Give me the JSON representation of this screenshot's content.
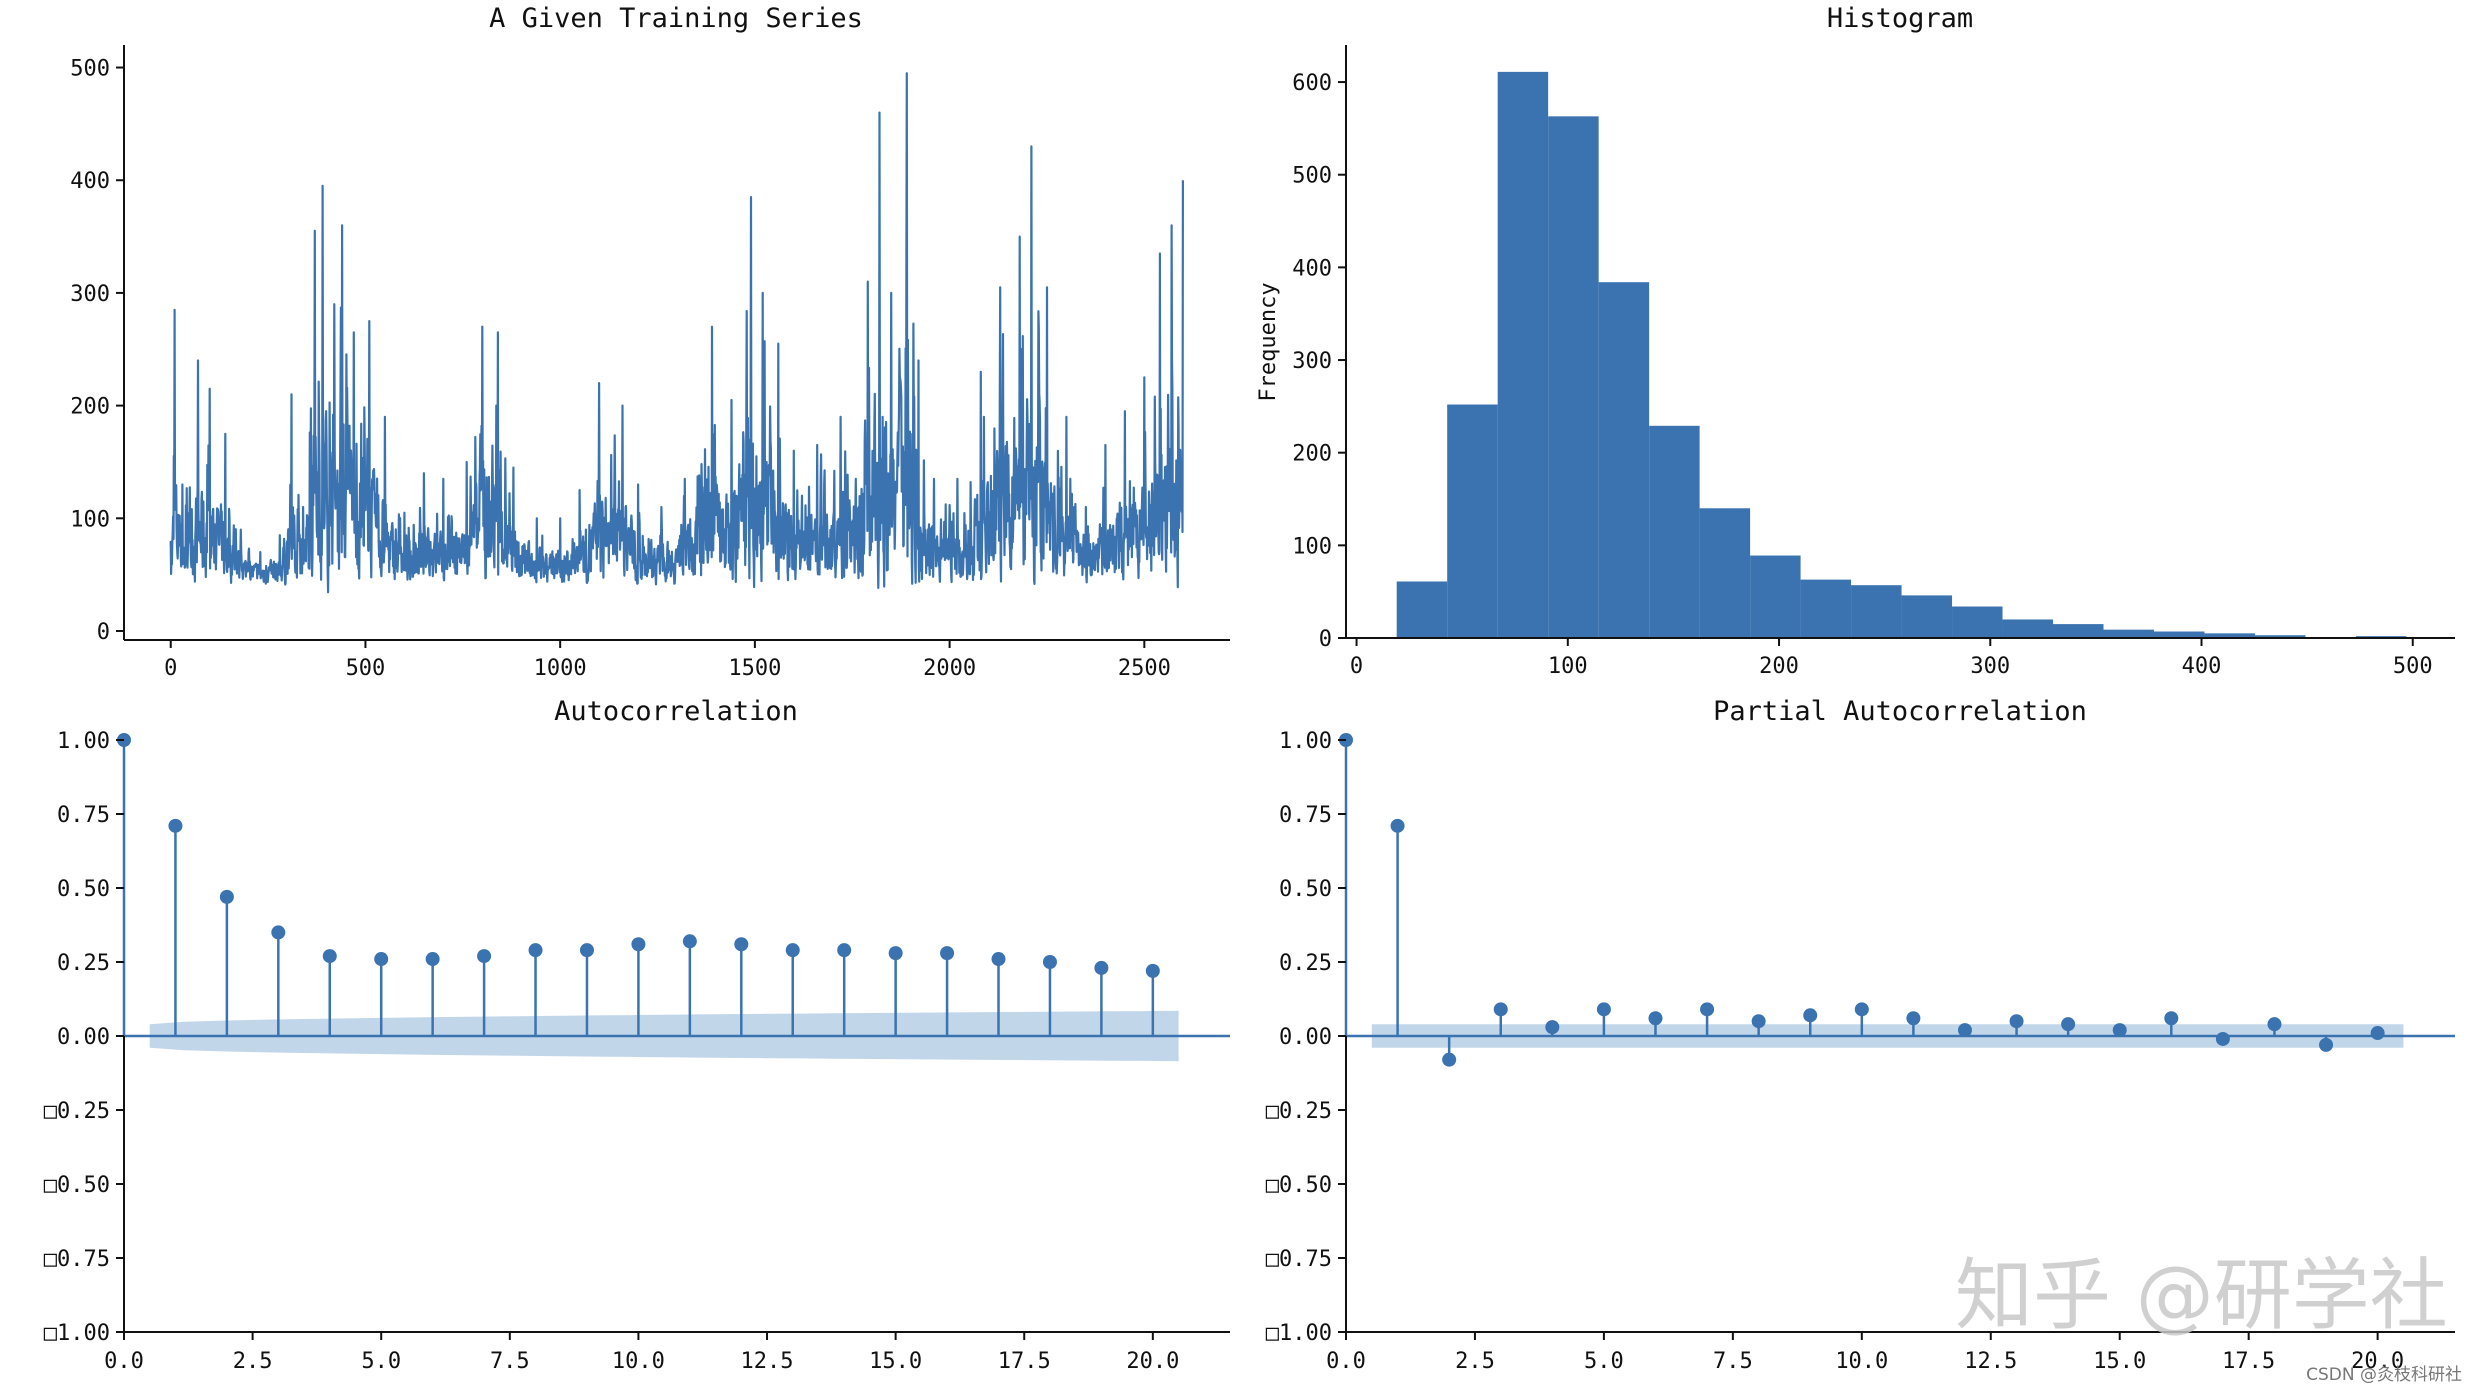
{
  "colors": {
    "series": "#3a73b0",
    "band": "#aec8e3",
    "axis": "#111111"
  },
  "chart_data": [
    {
      "id": "ts",
      "type": "line",
      "title": "A Given Training Series",
      "xlabel": "",
      "ylabel": "",
      "xlim": [
        -120,
        2720
      ],
      "ylim": [
        -8,
        520
      ],
      "xticks": [
        0,
        500,
        1000,
        1500,
        2000,
        2500
      ],
      "yticks": [
        0,
        100,
        200,
        300,
        400,
        500
      ],
      "n_points": 2600,
      "envelope": [
        {
          "x": 0,
          "v": 80
        },
        {
          "x": 10,
          "v": 285
        },
        {
          "x": 30,
          "v": 130
        },
        {
          "x": 70,
          "v": 240
        },
        {
          "x": 100,
          "v": 215
        },
        {
          "x": 140,
          "v": 175
        },
        {
          "x": 180,
          "v": 90
        },
        {
          "x": 230,
          "v": 70
        },
        {
          "x": 280,
          "v": 85
        },
        {
          "x": 310,
          "v": 210
        },
        {
          "x": 340,
          "v": 110
        },
        {
          "x": 370,
          "v": 355
        },
        {
          "x": 390,
          "v": 395
        },
        {
          "x": 420,
          "v": 290
        },
        {
          "x": 440,
          "v": 360
        },
        {
          "x": 470,
          "v": 265
        },
        {
          "x": 510,
          "v": 275
        },
        {
          "x": 550,
          "v": 190
        },
        {
          "x": 600,
          "v": 105
        },
        {
          "x": 650,
          "v": 140
        },
        {
          "x": 700,
          "v": 135
        },
        {
          "x": 760,
          "v": 150
        },
        {
          "x": 800,
          "v": 270
        },
        {
          "x": 840,
          "v": 265
        },
        {
          "x": 880,
          "v": 145
        },
        {
          "x": 940,
          "v": 100
        },
        {
          "x": 1000,
          "v": 100
        },
        {
          "x": 1050,
          "v": 125
        },
        {
          "x": 1100,
          "v": 220
        },
        {
          "x": 1160,
          "v": 200
        },
        {
          "x": 1200,
          "v": 130
        },
        {
          "x": 1260,
          "v": 110
        },
        {
          "x": 1320,
          "v": 135
        },
        {
          "x": 1390,
          "v": 270
        },
        {
          "x": 1440,
          "v": 205
        },
        {
          "x": 1490,
          "v": 385
        },
        {
          "x": 1520,
          "v": 300
        },
        {
          "x": 1560,
          "v": 255
        },
        {
          "x": 1600,
          "v": 160
        },
        {
          "x": 1660,
          "v": 165
        },
        {
          "x": 1720,
          "v": 190
        },
        {
          "x": 1790,
          "v": 310
        },
        {
          "x": 1820,
          "v": 460
        },
        {
          "x": 1850,
          "v": 300
        },
        {
          "x": 1890,
          "v": 495
        },
        {
          "x": 1920,
          "v": 240
        },
        {
          "x": 1960,
          "v": 135
        },
        {
          "x": 2020,
          "v": 135
        },
        {
          "x": 2080,
          "v": 230
        },
        {
          "x": 2130,
          "v": 305
        },
        {
          "x": 2180,
          "v": 350
        },
        {
          "x": 2210,
          "v": 430
        },
        {
          "x": 2250,
          "v": 305
        },
        {
          "x": 2300,
          "v": 190
        },
        {
          "x": 2350,
          "v": 110
        },
        {
          "x": 2400,
          "v": 165
        },
        {
          "x": 2450,
          "v": 195
        },
        {
          "x": 2500,
          "v": 225
        },
        {
          "x": 2540,
          "v": 335
        },
        {
          "x": 2570,
          "v": 360
        },
        {
          "x": 2599,
          "v": 400
        }
      ]
    },
    {
      "id": "hist",
      "type": "bar",
      "title": "Histogram",
      "xlabel": "",
      "ylabel": "Frequency",
      "xlim": [
        -5,
        520
      ],
      "ylim": [
        0,
        640
      ],
      "xticks": [
        0,
        100,
        200,
        300,
        400,
        500
      ],
      "yticks": [
        0,
        100,
        200,
        300,
        400,
        500,
        600
      ],
      "bin_edges": [
        19,
        42.9,
        66.8,
        90.7,
        114.6,
        138.5,
        162.4,
        186.3,
        210.2,
        234.1,
        258,
        281.9,
        305.8,
        329.7,
        353.6,
        377.5,
        401.4,
        425.3,
        449.2,
        473.1,
        497
      ],
      "values": [
        61,
        252,
        611,
        563,
        384,
        229,
        140,
        89,
        63,
        57,
        46,
        34,
        20,
        15,
        9,
        7,
        5,
        3,
        1,
        2
      ]
    },
    {
      "id": "acf",
      "type": "stem",
      "title": "Autocorrelation",
      "xlabel": "",
      "ylabel": "",
      "xlim": [
        0,
        21.5
      ],
      "ylim": [
        -1,
        1
      ],
      "xticks": [
        "0.0",
        "2.5",
        "5.0",
        "7.5",
        "10.0",
        "12.5",
        "15.0",
        "17.5",
        "20.0"
      ],
      "yticks": [
        "1.00",
        "0.75",
        "0.50",
        "0.25",
        "0.00",
        "□0.25",
        "□0.50",
        "□0.75",
        "□1.00"
      ],
      "lags": [
        0,
        1,
        2,
        3,
        4,
        5,
        6,
        7,
        8,
        9,
        10,
        11,
        12,
        13,
        14,
        15,
        16,
        17,
        18,
        19,
        20
      ],
      "values": [
        1.0,
        0.71,
        0.47,
        0.35,
        0.27,
        0.26,
        0.26,
        0.27,
        0.29,
        0.29,
        0.31,
        0.32,
        0.31,
        0.29,
        0.29,
        0.28,
        0.28,
        0.26,
        0.25,
        0.23,
        0.22
      ],
      "confidence_band": {
        "start": 0.5,
        "end": 20.5,
        "start_halfwidth": 0.04,
        "end_halfwidth": 0.085
      }
    },
    {
      "id": "pacf",
      "type": "stem",
      "title": "Partial Autocorrelation",
      "xlabel": "",
      "ylabel": "",
      "xlim": [
        0,
        21.5
      ],
      "ylim": [
        -1,
        1
      ],
      "xticks": [
        "0.0",
        "2.5",
        "5.0",
        "7.5",
        "10.0",
        "12.5",
        "15.0",
        "17.5",
        "20.0"
      ],
      "yticks": [
        "1.00",
        "0.75",
        "0.50",
        "0.25",
        "0.00",
        "□0.25",
        "□0.50",
        "□0.75",
        "□1.00"
      ],
      "lags": [
        0,
        1,
        2,
        3,
        4,
        5,
        6,
        7,
        8,
        9,
        10,
        11,
        12,
        13,
        14,
        15,
        16,
        17,
        18,
        19,
        20
      ],
      "values": [
        1.0,
        0.71,
        -0.08,
        0.09,
        0.03,
        0.09,
        0.06,
        0.09,
        0.05,
        0.07,
        0.09,
        0.06,
        0.02,
        0.05,
        0.04,
        0.02,
        0.06,
        -0.01,
        0.04,
        -0.03,
        0.01
      ],
      "confidence_band": {
        "start": 0.5,
        "end": 20.5,
        "start_halfwidth": 0.04,
        "end_halfwidth": 0.04
      }
    }
  ],
  "watermark": {
    "logo_text": "知乎 @研学社",
    "credit": "CSDN @灸枝科研社"
  }
}
